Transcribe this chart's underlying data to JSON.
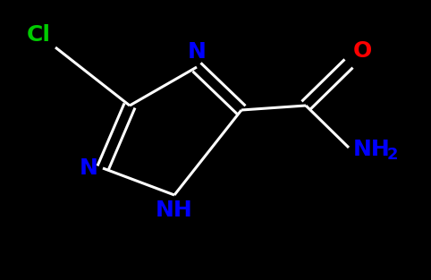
{
  "background_color": "#000000",
  "bond_color": "#ffffff",
  "atom_colors": {
    "Cl": "#00cc00",
    "N": "#0000ff",
    "O": "#ff0000",
    "NH": "#0000ff",
    "NH2": "#0000ff",
    "C": "#ffffff"
  },
  "figsize": [
    4.82,
    3.13
  ],
  "dpi": 100,
  "font_size_atoms": 18,
  "font_size_sub": 13,
  "lw": 2.2
}
